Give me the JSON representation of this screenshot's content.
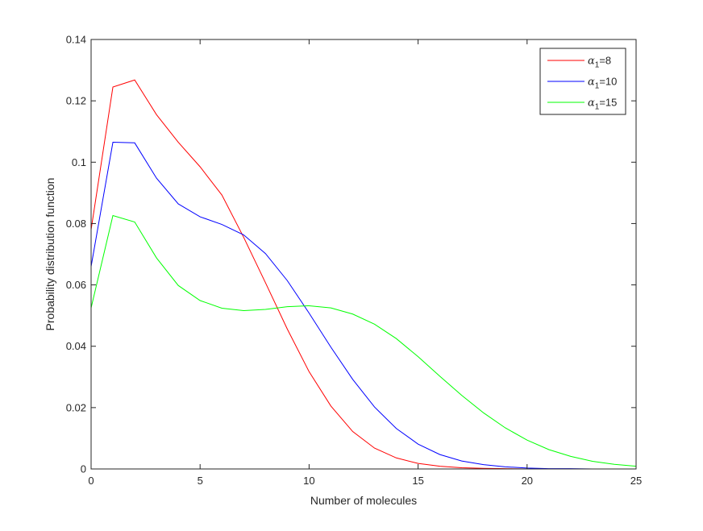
{
  "chart_data": {
    "type": "line",
    "title": "",
    "xlabel": "Number of molecules",
    "ylabel": "Probability distribution function",
    "xlim": [
      0,
      25
    ],
    "ylim": [
      0,
      0.14
    ],
    "xticks": [
      0,
      5,
      10,
      15,
      20,
      25
    ],
    "xtick_labels": [
      "0",
      "5",
      "10",
      "15",
      "20",
      "25"
    ],
    "yticks": [
      0,
      0.02,
      0.04,
      0.06,
      0.08,
      0.1,
      0.12,
      0.14
    ],
    "ytick_labels": [
      "0",
      "0.02",
      "0.04",
      "0.06",
      "0.08",
      "0.1",
      "0.12",
      "0.14"
    ],
    "grid": false,
    "legend_position": "top-right",
    "x": [
      0,
      1,
      2,
      3,
      4,
      5,
      6,
      7,
      8,
      9,
      10,
      11,
      12,
      13,
      14,
      15,
      16,
      17,
      18,
      19,
      20,
      21,
      22,
      23,
      24,
      25
    ],
    "series": [
      {
        "name": "=8",
        "name_symbol": "α",
        "name_subscript": "1",
        "color": "#ff0000",
        "values": [
          0.078,
          0.1245,
          0.1268,
          0.1155,
          0.1065,
          0.0985,
          0.0893,
          0.0755,
          0.0607,
          0.0456,
          0.0317,
          0.0205,
          0.0122,
          0.0068,
          0.0036,
          0.0018,
          0.0009,
          0.0004,
          0.0002,
          0.0001,
          0.0,
          0.0,
          0.0,
          0.0,
          0.0,
          0.0
        ]
      },
      {
        "name": "=10",
        "name_symbol": "α",
        "name_subscript": "1",
        "color": "#0000ff",
        "values": [
          0.066,
          0.1065,
          0.1063,
          0.0948,
          0.0864,
          0.0822,
          0.0797,
          0.0763,
          0.0702,
          0.0614,
          0.0508,
          0.0397,
          0.0292,
          0.0202,
          0.0132,
          0.0081,
          0.0047,
          0.0026,
          0.0014,
          0.0007,
          0.0003,
          0.0001,
          0.0001,
          0.0,
          0.0,
          0.0
        ]
      },
      {
        "name": "=15",
        "name_symbol": "α",
        "name_subscript": "1",
        "color": "#00ff00",
        "values": [
          0.0525,
          0.0826,
          0.0805,
          0.0688,
          0.0598,
          0.0549,
          0.0524,
          0.0516,
          0.052,
          0.0529,
          0.0532,
          0.0525,
          0.0505,
          0.0472,
          0.0425,
          0.0366,
          0.0302,
          0.024,
          0.0183,
          0.0134,
          0.0094,
          0.0063,
          0.0041,
          0.0025,
          0.0015,
          0.0009
        ]
      }
    ]
  }
}
